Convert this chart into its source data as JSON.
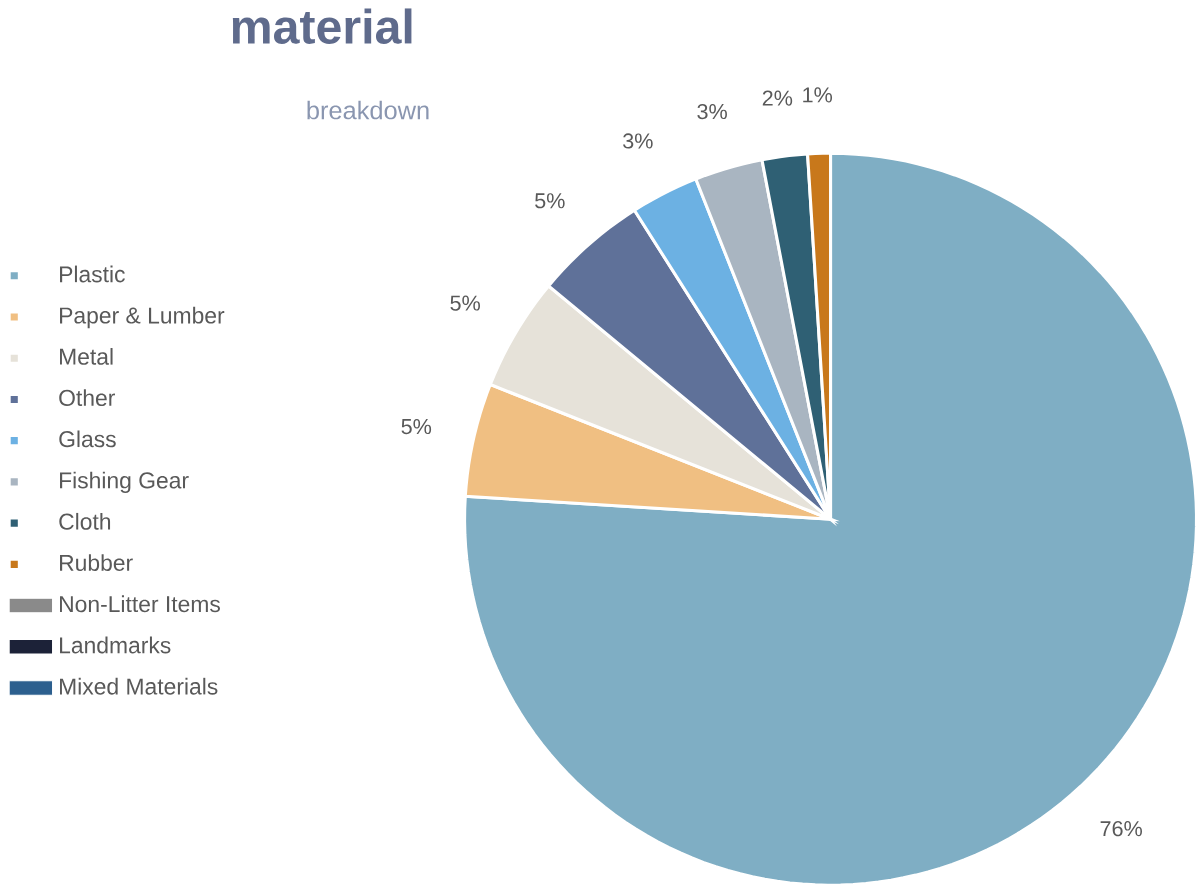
{
  "chart_data": {
    "type": "pie",
    "title": "material",
    "subtitle": "breakdown",
    "categories": [
      "Plastic",
      "Paper & Lumber",
      "Metal",
      "Other",
      "Glass",
      "Fishing Gear",
      "Cloth",
      "Rubber",
      "Non-Litter Items",
      "Landmarks",
      "Mixed Materials"
    ],
    "values": [
      76,
      5,
      5,
      5,
      3,
      3,
      2,
      1,
      0,
      0,
      0
    ],
    "value_labels": [
      "76%",
      "5%",
      "5%",
      "5%",
      "3%",
      "3%",
      "2%",
      "1%",
      null,
      null,
      null
    ],
    "colors": [
      "#7faec4",
      "#f0bf82",
      "#e6e2d9",
      "#5f7199",
      "#6cb1e3",
      "#a9b5c1",
      "#2f6074",
      "#c8781b",
      "#8a8a8a",
      "#1c2238",
      "#2c5f8e"
    ],
    "legend": "left"
  }
}
